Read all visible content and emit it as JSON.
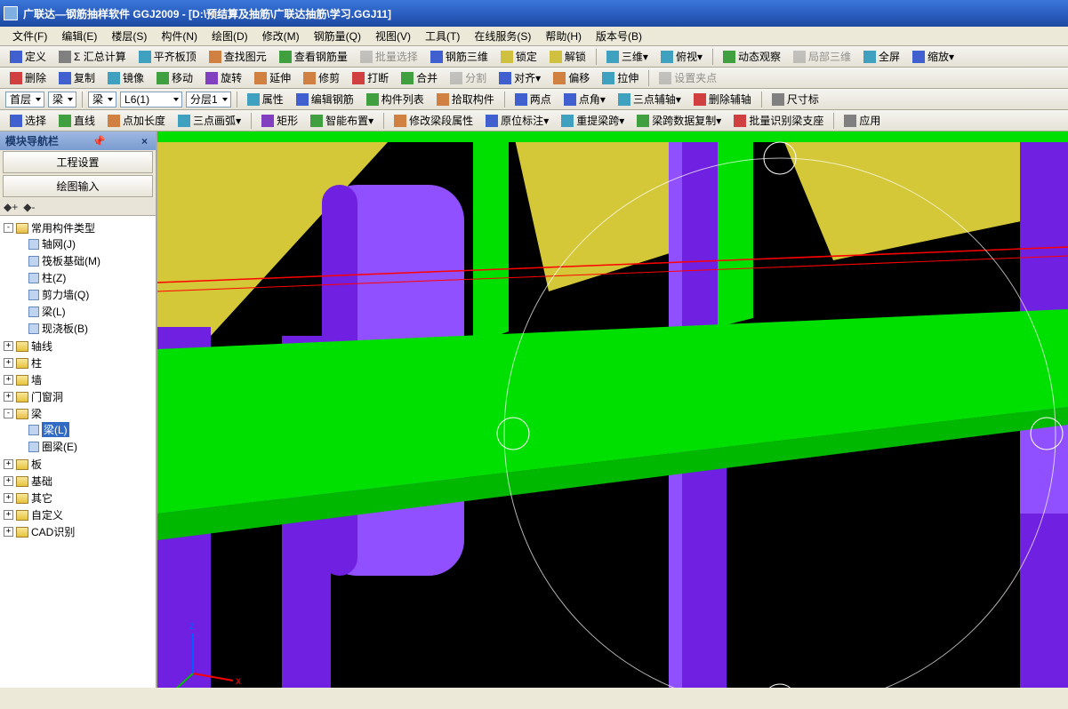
{
  "title": "广联达—钢筋抽样软件 GGJ2009 - [D:\\预结算及抽筋\\广联达抽筋\\学习.GGJ11]",
  "menu": [
    "文件(F)",
    "编辑(E)",
    "楼层(S)",
    "构件(N)",
    "绘图(D)",
    "修改(M)",
    "钢筋量(Q)",
    "视图(V)",
    "工具(T)",
    "在线服务(S)",
    "帮助(H)",
    "版本号(B)"
  ],
  "tb1": [
    {
      "icon": "blue",
      "label": "定义"
    },
    {
      "icon": "gray",
      "label": "Σ 汇总计算"
    },
    {
      "icon": "cyan",
      "label": "平齐板顶"
    },
    {
      "icon": "orange",
      "label": "查找图元"
    },
    {
      "icon": "green",
      "label": "查看钢筋量"
    },
    {
      "icon": "gray",
      "label": "批量选择",
      "dim": true
    },
    {
      "icon": "blue",
      "label": "钢筋三维"
    },
    {
      "icon": "yellow",
      "label": "锁定"
    },
    {
      "icon": "yellow",
      "label": "解锁"
    },
    {
      "sep": true
    },
    {
      "icon": "cyan",
      "label": "三维",
      "dd": true
    },
    {
      "icon": "cyan",
      "label": "俯视",
      "dd": true
    },
    {
      "sep": true
    },
    {
      "icon": "green",
      "label": "动态观察"
    },
    {
      "icon": "gray",
      "label": "局部三维",
      "dim": true
    },
    {
      "icon": "cyan",
      "label": "全屏"
    },
    {
      "icon": "blue",
      "label": "缩放",
      "dd": true
    }
  ],
  "tb2": [
    {
      "icon": "red",
      "label": "删除"
    },
    {
      "icon": "blue",
      "label": "复制"
    },
    {
      "icon": "cyan",
      "label": "镜像"
    },
    {
      "icon": "green",
      "label": "移动"
    },
    {
      "icon": "purple",
      "label": "旋转"
    },
    {
      "icon": "orange",
      "label": "延伸"
    },
    {
      "icon": "orange",
      "label": "修剪"
    },
    {
      "icon": "red",
      "label": "打断"
    },
    {
      "icon": "green",
      "label": "合并"
    },
    {
      "icon": "gray",
      "label": "分割",
      "dim": true
    },
    {
      "icon": "blue",
      "label": "对齐",
      "dd": true
    },
    {
      "icon": "orange",
      "label": "偏移"
    },
    {
      "icon": "cyan",
      "label": "拉伸"
    },
    {
      "sep": true
    },
    {
      "icon": "gray",
      "label": "设置夹点",
      "dim": true
    }
  ],
  "tb3": {
    "dd1": "首层",
    "dd2": "梁",
    "dd3": "梁",
    "dd4": "L6(1)",
    "dd5": "分层1",
    "items": [
      {
        "icon": "cyan",
        "label": "属性"
      },
      {
        "icon": "blue",
        "label": "编辑钢筋"
      },
      {
        "icon": "green",
        "label": "构件列表"
      },
      {
        "icon": "orange",
        "label": "拾取构件"
      },
      {
        "sep": true
      },
      {
        "icon": "blue",
        "label": "两点"
      },
      {
        "icon": "blue",
        "label": "点角",
        "dd": true
      },
      {
        "icon": "cyan",
        "label": "三点辅轴",
        "dd": true
      },
      {
        "icon": "red",
        "label": "删除辅轴"
      },
      {
        "sep": true
      },
      {
        "icon": "gray",
        "label": "尺寸标"
      }
    ]
  },
  "tb4": [
    {
      "icon": "blue",
      "label": "选择"
    },
    {
      "icon": "green",
      "label": "直线"
    },
    {
      "icon": "orange",
      "label": "点加长度"
    },
    {
      "icon": "cyan",
      "label": "三点画弧",
      "dd": true
    },
    {
      "sep": true
    },
    {
      "icon": "purple",
      "label": "矩形"
    },
    {
      "icon": "green",
      "label": "智能布置",
      "dd": true
    },
    {
      "sep": true
    },
    {
      "icon": "orange",
      "label": "修改梁段属性"
    },
    {
      "icon": "blue",
      "label": "原位标注",
      "dd": true
    },
    {
      "icon": "cyan",
      "label": "重提梁跨",
      "dd": true
    },
    {
      "icon": "green",
      "label": "梁跨数据复制",
      "dd": true
    },
    {
      "icon": "red",
      "label": "批量识别梁支座"
    },
    {
      "sep": true
    },
    {
      "icon": "gray",
      "label": "应用"
    }
  ],
  "panel": {
    "title": "模块导航栏",
    "btn1": "工程设置",
    "btn2": "绘图输入"
  },
  "tree": {
    "root": "常用构件类型",
    "rootItems": [
      {
        "label": "轴网(J)"
      },
      {
        "label": "筏板基础(M)"
      },
      {
        "label": "柱(Z)"
      },
      {
        "label": "剪力墙(Q)"
      },
      {
        "label": "梁(L)"
      },
      {
        "label": "现浇板(B)"
      }
    ],
    "folders": [
      {
        "label": "轴线",
        "open": false
      },
      {
        "label": "柱",
        "open": false
      },
      {
        "label": "墙",
        "open": false
      },
      {
        "label": "门窗洞",
        "open": false
      },
      {
        "label": "梁",
        "open": true,
        "children": [
          {
            "label": "梁(L)",
            "sel": true
          },
          {
            "label": "圈梁(E)"
          }
        ]
      },
      {
        "label": "板",
        "open": false
      },
      {
        "label": "基础",
        "open": false
      },
      {
        "label": "其它",
        "open": false
      },
      {
        "label": "自定义",
        "open": false
      },
      {
        "label": "CAD识别",
        "open": false
      }
    ]
  },
  "viewport": {
    "bg": "#000000",
    "colors": {
      "beam": "#00e000",
      "col": "#7020e0",
      "colLight": "#9050ff",
      "slab": "#d4c838",
      "line": "#ffffff",
      "red": "#ff0000"
    },
    "axis": {
      "x": "#ff0000",
      "y": "#00c000",
      "z": "#0060ff"
    }
  }
}
